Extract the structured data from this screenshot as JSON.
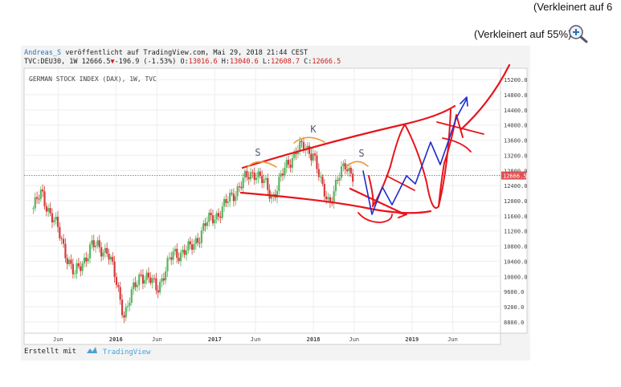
{
  "notes": {
    "top_clipped": "(Verkleinert auf 6",
    "zoom_text": "(Verkleinert auf 55%)"
  },
  "header": {
    "author": "Andreas_S",
    "published": "veröffentlicht auf TradingView.com, Mai 29, 2018 21:44 CEST",
    "symbol": "TVC:DEU30, 1W",
    "last": "12666.5",
    "change_arrow": "▼",
    "change": "-196.9 (-1.53%)",
    "ohlc_o_label": "O:",
    "ohlc_o": "13016.6",
    "ohlc_h_label": "H:",
    "ohlc_h": "13040.6",
    "ohlc_l_label": "L:",
    "ohlc_l": "12608.7",
    "ohlc_c_label": "C:",
    "ohlc_c": "12666.5"
  },
  "footer": {
    "created_with": "Erstellt mit",
    "brand": "TradingView"
  },
  "colors": {
    "up": "#5ab55e",
    "down": "#d43c3c",
    "annotation_red": "#e8141c",
    "annotation_blue": "#1d2bd0",
    "annotation_orange": "#ef9a3b",
    "price_line": "#e05050"
  },
  "chart_data": {
    "type": "candlestick",
    "title": "GERMAN STOCK INDEX (DAX), 1W, TVC",
    "ylim": [
      8500,
      15500
    ],
    "y_ticks": [
      8800,
      9200,
      9600,
      10000,
      10400,
      10800,
      11200,
      11600,
      12000,
      12400,
      12800,
      13200,
      13600,
      14000,
      14400,
      14800,
      15200
    ],
    "y_tick_labels": [
      "8800.0",
      "9200.0",
      "9600.0",
      "10000.0",
      "10400.0",
      "10800.0",
      "11200.0",
      "11600.0",
      "12000.0",
      "12400.0",
      "12800.0",
      "13200.0",
      "13600.0",
      "14000.0",
      "14400.0",
      "14800.0",
      "15200.0"
    ],
    "x_ticks": [
      "Jun",
      "2016",
      "Jun",
      "2017",
      "Jun",
      "2018",
      "Jun",
      "2019",
      "Jun"
    ],
    "last_price": 12666.5,
    "last_price_label": "12666.5",
    "pattern_labels": [
      "S",
      "K",
      "S"
    ],
    "approx_close_path": [
      [
        "2015-03",
        11800
      ],
      [
        "2015-04",
        12200
      ],
      [
        "2015-06",
        11200
      ],
      [
        "2015-08",
        10000
      ],
      [
        "2015-10",
        10800
      ],
      [
        "2015-12",
        10700
      ],
      [
        "2016-02",
        9000
      ],
      [
        "2016-04",
        10100
      ],
      [
        "2016-06",
        9700
      ],
      [
        "2016-08",
        10600
      ],
      [
        "2016-10",
        10700
      ],
      [
        "2016-12",
        11400
      ],
      [
        "2017-02",
        11800
      ],
      [
        "2017-04",
        12400
      ],
      [
        "2017-06",
        12800
      ],
      [
        "2017-08",
        12100
      ],
      [
        "2017-10",
        13000
      ],
      [
        "2017-11",
        13400
      ],
      [
        "2018-01",
        13300
      ],
      [
        "2018-02",
        12300
      ],
      [
        "2018-03",
        12000
      ],
      [
        "2018-04",
        12500
      ],
      [
        "2018-05",
        13000
      ],
      [
        "2018-05-28",
        12666.5
      ]
    ]
  }
}
